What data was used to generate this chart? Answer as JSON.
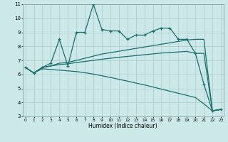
{
  "bg_color": "#cce8e8",
  "grid_color": "#aacccc",
  "line_color": "#1a6e6e",
  "x_min": 0,
  "x_max": 23,
  "y_min": 3,
  "y_max": 11,
  "xlabel": "Humidex (Indice chaleur)",
  "series": {
    "zigzag": [
      6.5,
      6.1,
      6.5,
      6.8,
      8.5,
      6.6,
      9.0,
      9.0,
      11.0,
      9.2,
      9.1,
      9.1,
      8.5,
      8.8,
      8.8,
      9.1,
      9.3,
      9.3,
      8.5,
      8.5,
      7.5,
      5.3,
      3.4,
      3.5
    ],
    "rise1": [
      6.5,
      6.1,
      6.5,
      6.6,
      6.8,
      6.85,
      7.0,
      7.15,
      7.3,
      7.45,
      7.55,
      7.65,
      7.75,
      7.85,
      7.95,
      8.05,
      8.15,
      8.25,
      8.35,
      8.45,
      8.5,
      8.5,
      3.4,
      3.5
    ],
    "rise2": [
      6.5,
      6.1,
      6.5,
      6.6,
      6.7,
      6.75,
      6.85,
      6.92,
      7.0,
      7.08,
      7.15,
      7.22,
      7.28,
      7.34,
      7.4,
      7.46,
      7.52,
      7.56,
      7.6,
      7.64,
      7.5,
      7.5,
      3.4,
      3.5
    ],
    "fall": [
      6.5,
      6.1,
      6.4,
      6.35,
      6.3,
      6.25,
      6.2,
      6.12,
      6.02,
      5.9,
      5.78,
      5.65,
      5.52,
      5.38,
      5.25,
      5.1,
      4.95,
      4.8,
      4.65,
      4.5,
      4.35,
      3.9,
      3.4,
      3.5
    ]
  }
}
